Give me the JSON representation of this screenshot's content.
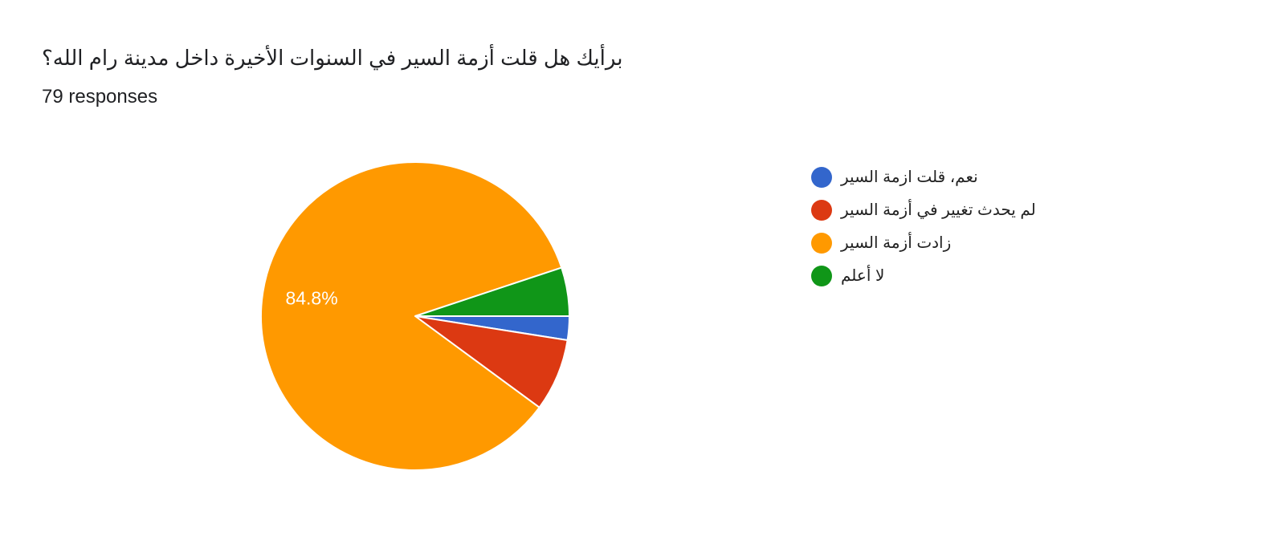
{
  "question": {
    "title": "برأيك هل قلت أزمة السير في السنوات الأخيرة داخل مدينة رام الله؟",
    "responses": "79 responses"
  },
  "chart_data": {
    "type": "pie",
    "title": "برأيك هل قلت أزمة السير في السنوات الأخيرة داخل مدينة رام الله؟",
    "total_responses": 79,
    "legend_position": "right",
    "slices": [
      {
        "label": "نعم، قلت ازمة السير",
        "value": 2.5,
        "color": "#3366cc"
      },
      {
        "label": "لم يحدث تغيير في أزمة السير",
        "value": 7.6,
        "color": "#dc3912"
      },
      {
        "label": "زادت أزمة السير",
        "value": 84.8,
        "color": "#ff9900",
        "data_label": "84.8%"
      },
      {
        "label": "لا أعلم",
        "value": 5.1,
        "color": "#109618"
      }
    ]
  }
}
